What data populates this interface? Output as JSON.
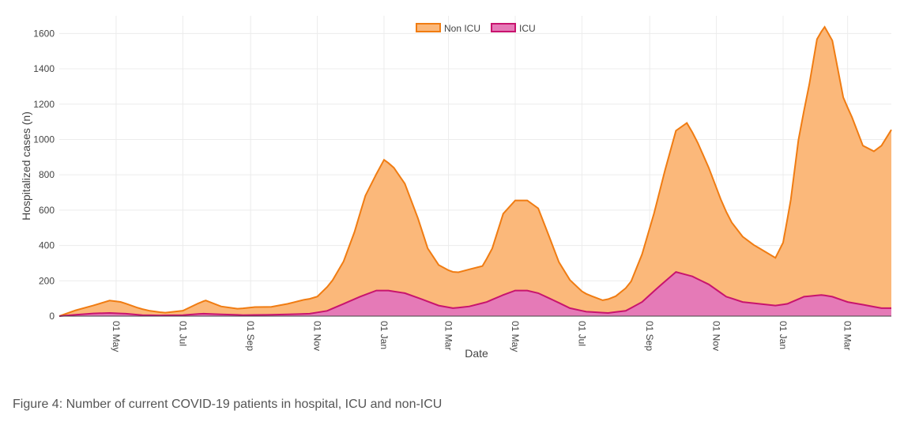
{
  "caption": "Figure 4: Number of current COVID-19 patients in hospital, ICU and non-ICU",
  "chart_data": {
    "type": "area",
    "stacked": true,
    "xlabel": "Date",
    "ylabel": "Hospitalized cases (n)",
    "ylim": [
      0,
      1700
    ],
    "xlim": [
      "2020-03-10",
      "2022-04-10"
    ],
    "y_ticks": [
      0,
      200,
      400,
      600,
      800,
      1000,
      1200,
      1400,
      1600
    ],
    "x_ticks": [
      {
        "date": "2020-05-01",
        "label": "01 May"
      },
      {
        "date": "2020-07-01",
        "label": "01 Jul"
      },
      {
        "date": "2020-09-01",
        "label": "01 Sep"
      },
      {
        "date": "2020-11-01",
        "label": "01 Nov"
      },
      {
        "date": "2021-01-01",
        "label": "01 Jan"
      },
      {
        "date": "2021-03-01",
        "label": "01 Mar"
      },
      {
        "date": "2021-05-01",
        "label": "01 May"
      },
      {
        "date": "2021-07-01",
        "label": "01 Jul"
      },
      {
        "date": "2021-09-01",
        "label": "01 Sep"
      },
      {
        "date": "2021-11-01",
        "label": "01 Nov"
      },
      {
        "date": "2022-01-01",
        "label": "01 Jan"
      },
      {
        "date": "2022-03-01",
        "label": "01 Mar"
      }
    ],
    "grid": true,
    "legend_position": "top-center",
    "series": [
      {
        "name": "Non ICU",
        "line_color": "#f07c12",
        "fill_color": "#fbb87a",
        "points": [
          [
            "2020-03-10",
            0
          ],
          [
            "2020-03-25",
            25
          ],
          [
            "2020-04-10",
            45
          ],
          [
            "2020-04-25",
            70
          ],
          [
            "2020-05-05",
            65
          ],
          [
            "2020-05-20",
            40
          ],
          [
            "2020-06-01",
            25
          ],
          [
            "2020-06-15",
            15
          ],
          [
            "2020-07-01",
            25
          ],
          [
            "2020-07-15",
            60
          ],
          [
            "2020-07-22",
            75
          ],
          [
            "2020-08-05",
            45
          ],
          [
            "2020-08-20",
            35
          ],
          [
            "2020-09-05",
            45
          ],
          [
            "2020-09-20",
            45
          ],
          [
            "2020-10-05",
            60
          ],
          [
            "2020-10-20",
            80
          ],
          [
            "2020-11-01",
            90
          ],
          [
            "2020-11-15",
            160
          ],
          [
            "2020-11-25",
            240
          ],
          [
            "2020-12-05",
            380
          ],
          [
            "2020-12-15",
            560
          ],
          [
            "2020-12-25",
            660
          ],
          [
            "2021-01-01",
            740
          ],
          [
            "2021-01-10",
            700
          ],
          [
            "2021-01-20",
            620
          ],
          [
            "2021-02-01",
            450
          ],
          [
            "2021-02-10",
            300
          ],
          [
            "2021-02-20",
            230
          ],
          [
            "2021-03-01",
            210
          ],
          [
            "2021-03-10",
            200
          ],
          [
            "2021-03-20",
            210
          ],
          [
            "2021-04-01",
            210
          ],
          [
            "2021-04-10",
            290
          ],
          [
            "2021-04-20",
            460
          ],
          [
            "2021-05-01",
            510
          ],
          [
            "2021-05-12",
            510
          ],
          [
            "2021-05-22",
            480
          ],
          [
            "2021-06-01",
            350
          ],
          [
            "2021-06-10",
            230
          ],
          [
            "2021-06-20",
            160
          ],
          [
            "2021-07-01",
            110
          ],
          [
            "2021-07-10",
            90
          ],
          [
            "2021-07-20",
            70
          ],
          [
            "2021-08-01",
            90
          ],
          [
            "2021-08-15",
            150
          ],
          [
            "2021-08-25",
            270
          ],
          [
            "2021-09-05",
            440
          ],
          [
            "2021-09-15",
            630
          ],
          [
            "2021-09-25",
            800
          ],
          [
            "2021-10-05",
            860
          ],
          [
            "2021-10-15",
            770
          ],
          [
            "2021-10-25",
            660
          ],
          [
            "2021-11-05",
            530
          ],
          [
            "2021-11-15",
            430
          ],
          [
            "2021-11-25",
            370
          ],
          [
            "2021-12-05",
            330
          ],
          [
            "2021-12-15",
            300
          ],
          [
            "2021-12-25",
            270
          ],
          [
            "2022-01-01",
            350
          ],
          [
            "2022-01-08",
            580
          ],
          [
            "2022-01-15",
            900
          ],
          [
            "2022-01-25",
            1200
          ],
          [
            "2022-02-01",
            1450
          ],
          [
            "2022-02-08",
            1520
          ],
          [
            "2022-02-15",
            1450
          ],
          [
            "2022-02-25",
            1150
          ],
          [
            "2022-03-05",
            1050
          ],
          [
            "2022-03-15",
            900
          ],
          [
            "2022-03-25",
            880
          ],
          [
            "2022-04-01",
            920
          ],
          [
            "2022-04-10",
            1010
          ]
        ]
      },
      {
        "name": "ICU",
        "line_color": "#c8146e",
        "fill_color": "#e57ab7",
        "points": [
          [
            "2020-03-10",
            0
          ],
          [
            "2020-03-25",
            8
          ],
          [
            "2020-04-10",
            15
          ],
          [
            "2020-04-25",
            18
          ],
          [
            "2020-05-10",
            14
          ],
          [
            "2020-05-25",
            6
          ],
          [
            "2020-06-10",
            4
          ],
          [
            "2020-07-01",
            6
          ],
          [
            "2020-07-20",
            14
          ],
          [
            "2020-08-05",
            10
          ],
          [
            "2020-08-25",
            6
          ],
          [
            "2020-09-15",
            7
          ],
          [
            "2020-10-05",
            10
          ],
          [
            "2020-10-25",
            14
          ],
          [
            "2020-11-10",
            30
          ],
          [
            "2020-11-25",
            70
          ],
          [
            "2020-12-10",
            110
          ],
          [
            "2020-12-25",
            145
          ],
          [
            "2021-01-05",
            145
          ],
          [
            "2021-01-20",
            130
          ],
          [
            "2021-02-05",
            95
          ],
          [
            "2021-02-20",
            60
          ],
          [
            "2021-03-05",
            45
          ],
          [
            "2021-03-20",
            55
          ],
          [
            "2021-04-05",
            80
          ],
          [
            "2021-04-20",
            120
          ],
          [
            "2021-05-01",
            145
          ],
          [
            "2021-05-12",
            145
          ],
          [
            "2021-05-22",
            130
          ],
          [
            "2021-06-05",
            90
          ],
          [
            "2021-06-20",
            45
          ],
          [
            "2021-07-05",
            25
          ],
          [
            "2021-07-25",
            18
          ],
          [
            "2021-08-10",
            30
          ],
          [
            "2021-08-25",
            80
          ],
          [
            "2021-09-10",
            170
          ],
          [
            "2021-09-25",
            250
          ],
          [
            "2021-10-10",
            225
          ],
          [
            "2021-10-25",
            180
          ],
          [
            "2021-11-10",
            110
          ],
          [
            "2021-11-25",
            80
          ],
          [
            "2021-12-10",
            70
          ],
          [
            "2021-12-25",
            60
          ],
          [
            "2022-01-05",
            70
          ],
          [
            "2022-01-20",
            110
          ],
          [
            "2022-02-05",
            120
          ],
          [
            "2022-02-15",
            110
          ],
          [
            "2022-03-01",
            80
          ],
          [
            "2022-03-15",
            65
          ],
          [
            "2022-04-01",
            45
          ],
          [
            "2022-04-10",
            45
          ]
        ]
      }
    ]
  }
}
